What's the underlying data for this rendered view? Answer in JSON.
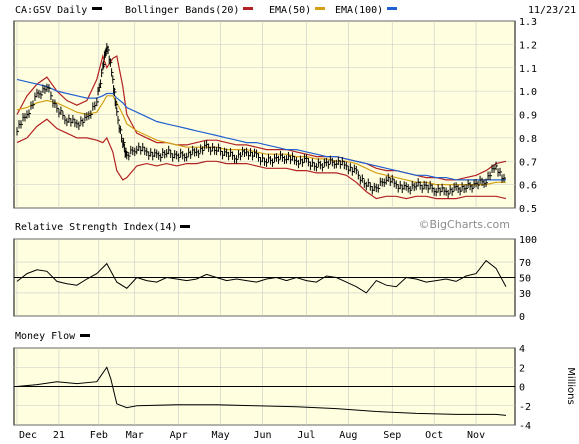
{
  "header": {
    "symbol_label": "CA:GSV Daily",
    "date": "11/23/21",
    "legend": [
      {
        "label": "Bollinger Bands(20)",
        "color": "#b22222"
      },
      {
        "label": "EMA(50)",
        "color": "#d4a017"
      },
      {
        "label": "EMA(100)",
        "color": "#2060d0"
      }
    ]
  },
  "watermark": "©BigCharts.com",
  "colors": {
    "panel_bg": "#ffffe0",
    "price": "#000000",
    "bollinger": "#b22222",
    "ema50": "#d4a017",
    "ema100": "#2060d0",
    "grid": "#c8c8c8"
  },
  "x_axis": {
    "labels": [
      "Dec",
      "21",
      "Feb",
      "Mar",
      "Apr",
      "May",
      "Jun",
      "Jul",
      "Aug",
      "Sep",
      "Oct",
      "Nov"
    ],
    "positions": [
      0,
      21,
      41,
      59,
      81,
      102,
      123,
      145,
      166,
      188,
      209,
      230
    ]
  },
  "chart_data": [
    {
      "type": "line",
      "title": "CA:GSV Daily",
      "ylim": [
        0.5,
        1.3
      ],
      "yticks": [
        "1.3",
        "1.2",
        "1.1",
        "1.0",
        "0.9",
        "0.8",
        "0.7",
        "0.6",
        "0.5"
      ],
      "x": [
        0,
        5,
        10,
        15,
        20,
        25,
        30,
        35,
        40,
        43,
        45,
        48,
        50,
        53,
        55,
        60,
        65,
        70,
        75,
        80,
        85,
        90,
        95,
        100,
        105,
        110,
        115,
        120,
        125,
        130,
        135,
        140,
        145,
        150,
        155,
        160,
        165,
        170,
        175,
        180,
        185,
        190,
        195,
        200,
        205,
        210,
        215,
        220,
        225,
        230,
        235,
        240,
        245
      ],
      "series": [
        {
          "key": "price",
          "values": [
            0.84,
            0.9,
            0.98,
            1.02,
            0.92,
            0.88,
            0.86,
            0.88,
            0.96,
            1.1,
            1.2,
            1.05,
            0.9,
            0.78,
            0.72,
            0.76,
            0.74,
            0.72,
            0.74,
            0.72,
            0.73,
            0.74,
            0.76,
            0.75,
            0.73,
            0.72,
            0.74,
            0.72,
            0.7,
            0.71,
            0.72,
            0.7,
            0.7,
            0.68,
            0.69,
            0.7,
            0.68,
            0.65,
            0.6,
            0.58,
            0.63,
            0.6,
            0.58,
            0.6,
            0.59,
            0.58,
            0.57,
            0.58,
            0.59,
            0.6,
            0.62,
            0.68,
            0.6
          ]
        },
        {
          "key": "bb_upper",
          "values": [
            0.9,
            0.98,
            1.03,
            1.06,
            1.0,
            0.96,
            0.94,
            0.96,
            1.05,
            1.15,
            1.1,
            1.14,
            1.15,
            1.02,
            0.9,
            0.82,
            0.8,
            0.78,
            0.78,
            0.77,
            0.77,
            0.78,
            0.79,
            0.79,
            0.78,
            0.77,
            0.77,
            0.76,
            0.75,
            0.75,
            0.75,
            0.74,
            0.73,
            0.72,
            0.72,
            0.72,
            0.71,
            0.7,
            0.69,
            0.67,
            0.66,
            0.66,
            0.65,
            0.64,
            0.63,
            0.63,
            0.62,
            0.62,
            0.63,
            0.64,
            0.66,
            0.69,
            0.7
          ]
        },
        {
          "key": "bb_lower",
          "values": [
            0.78,
            0.8,
            0.85,
            0.88,
            0.84,
            0.82,
            0.8,
            0.8,
            0.79,
            0.78,
            0.8,
            0.74,
            0.66,
            0.62,
            0.63,
            0.68,
            0.69,
            0.68,
            0.69,
            0.68,
            0.69,
            0.69,
            0.7,
            0.7,
            0.69,
            0.69,
            0.69,
            0.68,
            0.67,
            0.67,
            0.67,
            0.66,
            0.66,
            0.65,
            0.65,
            0.65,
            0.64,
            0.61,
            0.57,
            0.54,
            0.55,
            0.55,
            0.54,
            0.55,
            0.55,
            0.54,
            0.54,
            0.54,
            0.55,
            0.55,
            0.55,
            0.55,
            0.54
          ]
        },
        {
          "key": "ema50",
          "values": [
            0.92,
            0.93,
            0.95,
            0.96,
            0.95,
            0.93,
            0.91,
            0.9,
            0.91,
            0.95,
            0.98,
            0.98,
            0.95,
            0.9,
            0.86,
            0.83,
            0.81,
            0.79,
            0.78,
            0.77,
            0.76,
            0.76,
            0.76,
            0.76,
            0.75,
            0.75,
            0.75,
            0.74,
            0.73,
            0.73,
            0.73,
            0.72,
            0.72,
            0.71,
            0.71,
            0.7,
            0.7,
            0.69,
            0.67,
            0.65,
            0.64,
            0.63,
            0.62,
            0.61,
            0.61,
            0.6,
            0.6,
            0.6,
            0.6,
            0.6,
            0.6,
            0.61,
            0.61
          ]
        },
        {
          "key": "ema100",
          "values": [
            1.05,
            1.04,
            1.03,
            1.02,
            1.0,
            0.99,
            0.98,
            0.97,
            0.97,
            0.98,
            0.99,
            0.99,
            0.97,
            0.95,
            0.93,
            0.91,
            0.89,
            0.87,
            0.86,
            0.85,
            0.84,
            0.83,
            0.82,
            0.81,
            0.8,
            0.79,
            0.78,
            0.78,
            0.77,
            0.76,
            0.75,
            0.75,
            0.74,
            0.73,
            0.72,
            0.72,
            0.71,
            0.7,
            0.69,
            0.68,
            0.67,
            0.66,
            0.65,
            0.64,
            0.64,
            0.63,
            0.63,
            0.62,
            0.62,
            0.62,
            0.62,
            0.62,
            0.62
          ]
        }
      ]
    },
    {
      "type": "line",
      "title": "Relative Strength Index(14)",
      "ylim": [
        0,
        100
      ],
      "yticks": [
        "100",
        "70",
        "50",
        "30",
        "0"
      ],
      "reference_line": 50,
      "x": [
        0,
        5,
        10,
        15,
        20,
        25,
        30,
        35,
        40,
        45,
        50,
        55,
        60,
        65,
        70,
        75,
        80,
        85,
        90,
        95,
        100,
        105,
        110,
        115,
        120,
        125,
        130,
        135,
        140,
        145,
        150,
        155,
        160,
        165,
        170,
        175,
        180,
        185,
        190,
        195,
        200,
        205,
        210,
        215,
        220,
        225,
        230,
        235,
        240,
        245
      ],
      "values": [
        45,
        55,
        60,
        58,
        45,
        42,
        40,
        48,
        55,
        68,
        44,
        36,
        50,
        46,
        44,
        50,
        48,
        46,
        48,
        54,
        50,
        46,
        48,
        46,
        44,
        48,
        50,
        46,
        50,
        46,
        44,
        52,
        50,
        44,
        38,
        30,
        46,
        40,
        38,
        50,
        48,
        44,
        46,
        48,
        45,
        52,
        55,
        72,
        62,
        38
      ]
    },
    {
      "type": "line",
      "title": "Money Flow",
      "ylabel": "Millions",
      "ylim": [
        -4,
        4
      ],
      "yticks": [
        "4",
        "2",
        "0",
        "-2",
        "-4"
      ],
      "reference_line": 0,
      "x": [
        0,
        10,
        20,
        30,
        40,
        45,
        47,
        50,
        55,
        60,
        80,
        100,
        120,
        140,
        160,
        180,
        200,
        220,
        240,
        245
      ],
      "values": [
        0,
        0.2,
        0.5,
        0.3,
        0.5,
        2.0,
        0.8,
        -1.8,
        -2.2,
        -2.0,
        -1.9,
        -1.9,
        -2.0,
        -2.1,
        -2.3,
        -2.6,
        -2.8,
        -2.9,
        -2.9,
        -3.0
      ]
    }
  ]
}
